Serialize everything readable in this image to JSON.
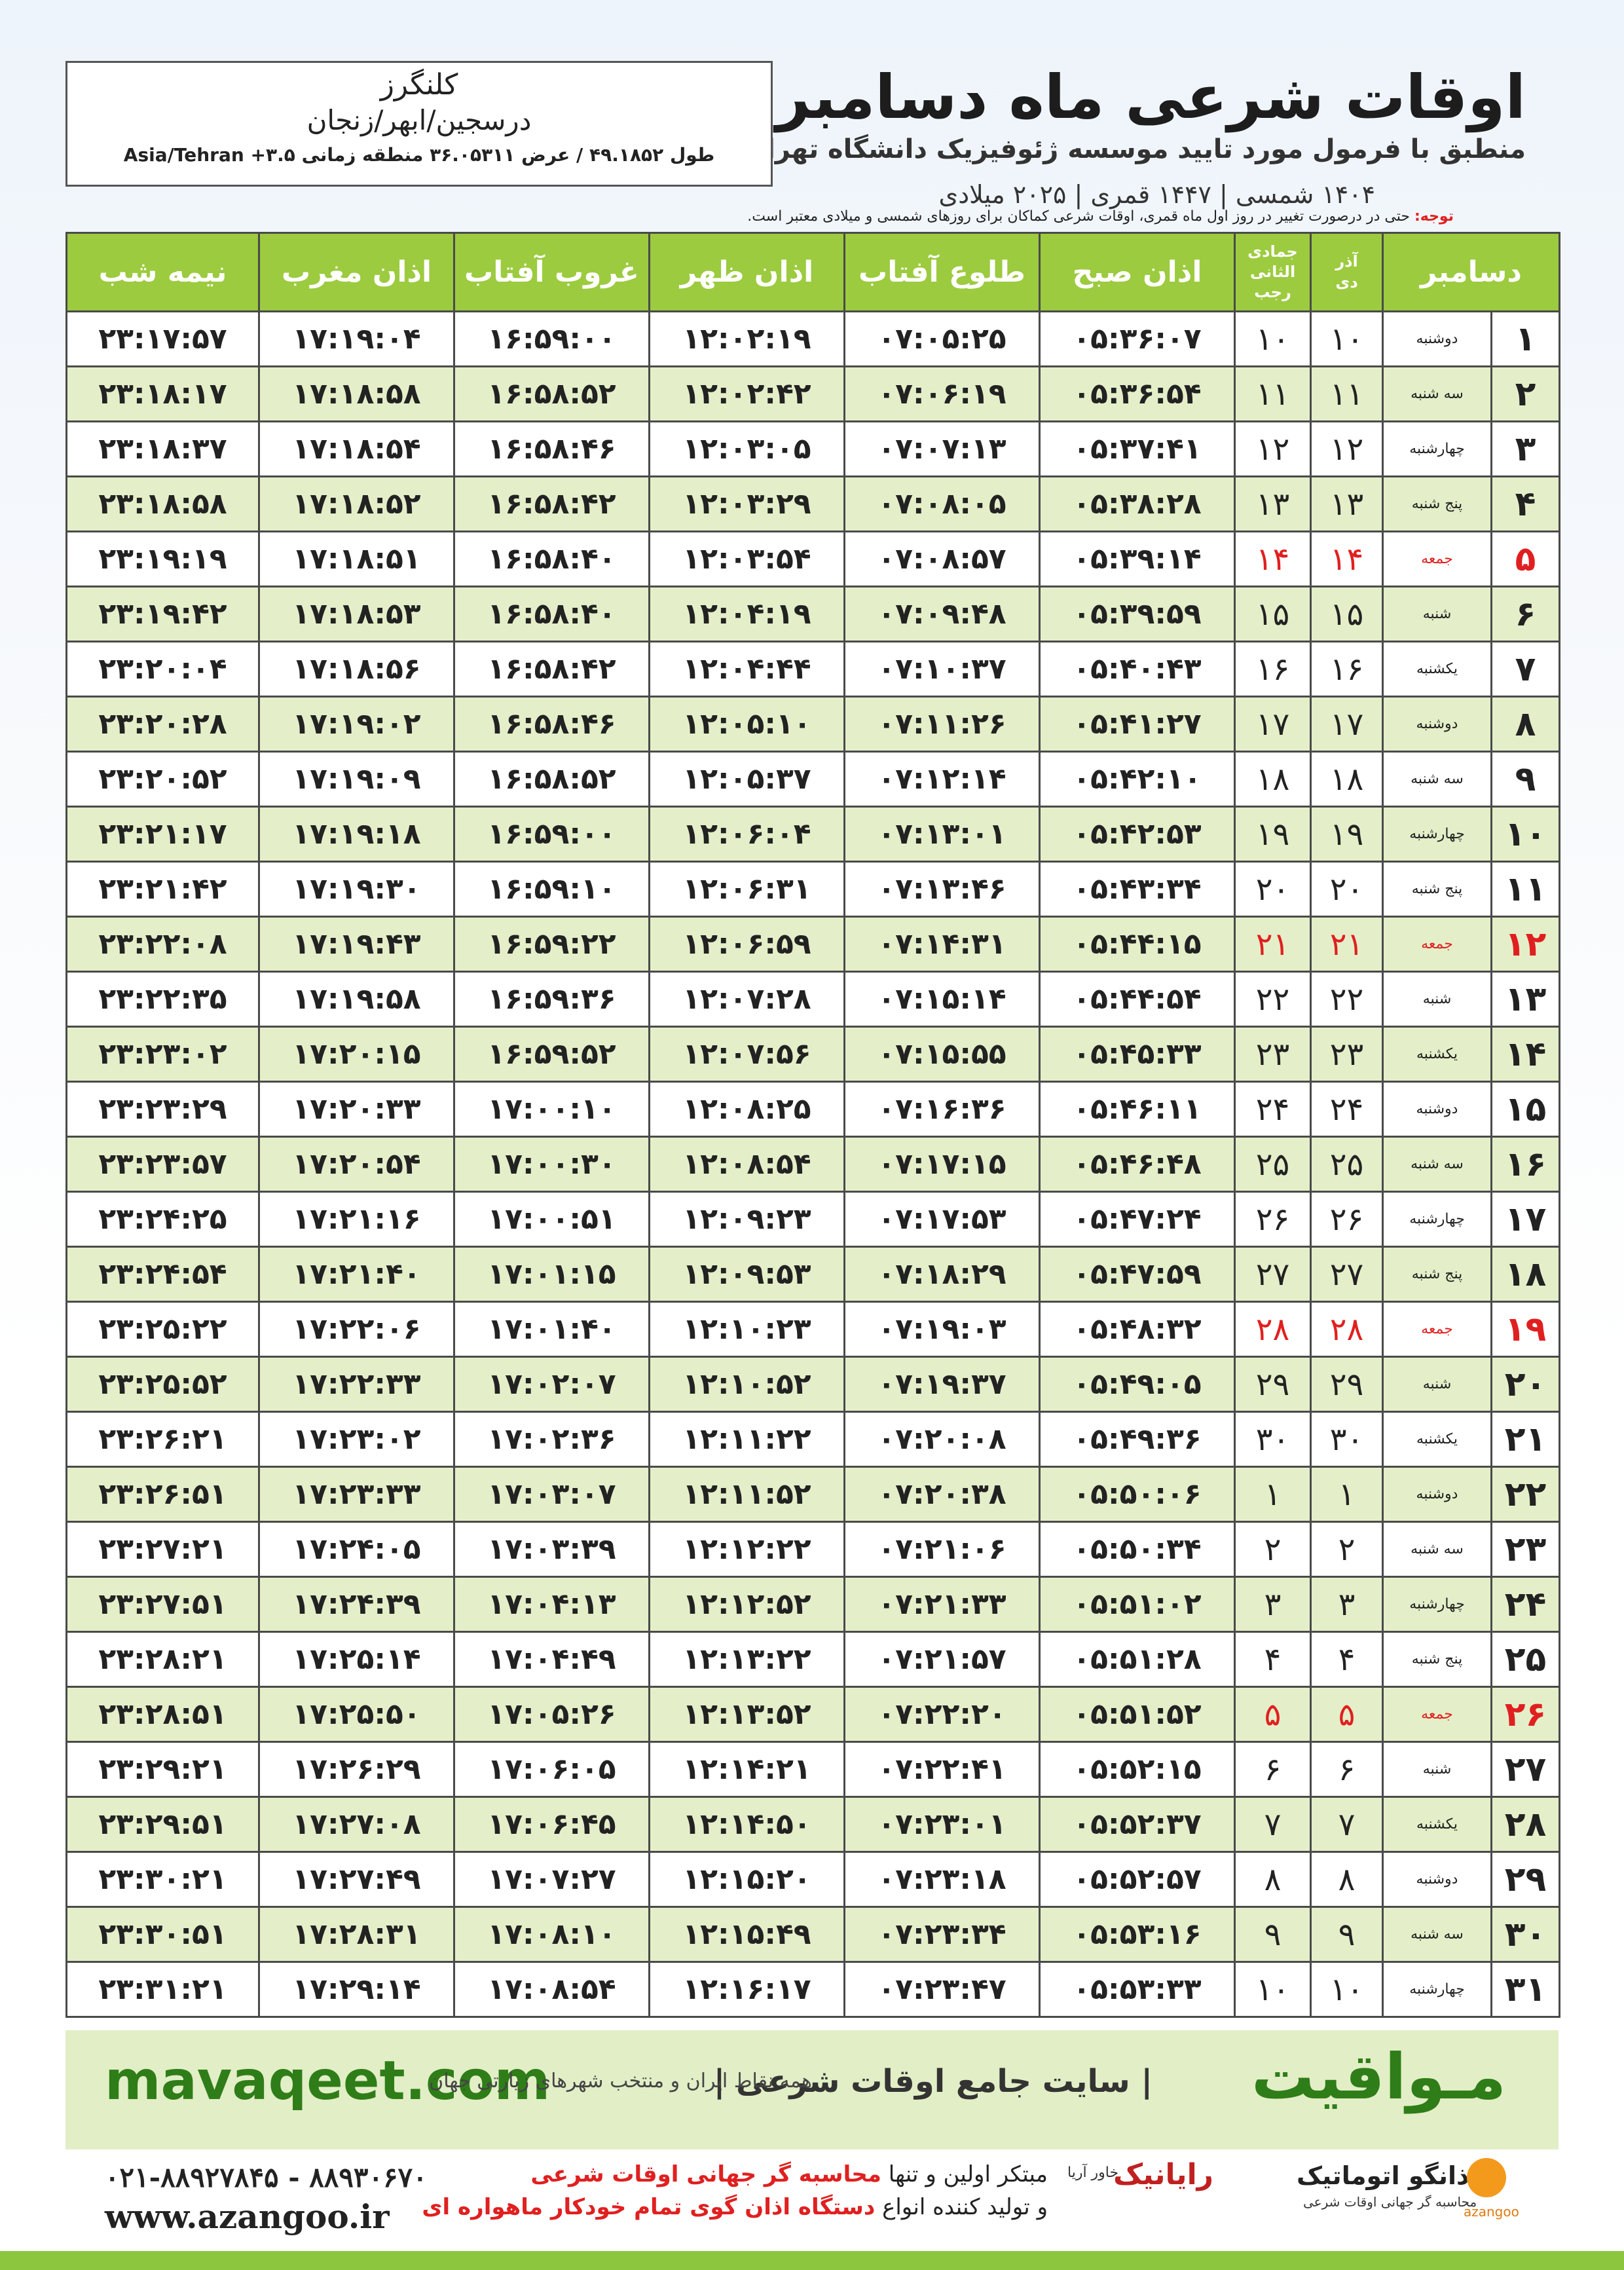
{
  "header": {
    "title": "اوقات شرعی ماه دسامبر",
    "subtitle": "منطبق با فرمول مورد تایید موسسه ژئوفیزیک دانشگاه تهران",
    "years": "۱۴۰۴ شمسی | ۱۴۴۷ قمری | ۲۰۲۵ میلادی"
  },
  "location": {
    "name": "کلنگرز",
    "region": "درسجین/ابهر/زنجان",
    "coords": "طول ۴۹.۱۸۵۲ / عرض ۳۶.۰۵۳۱۱ منطقه زمانی ۳.۵+ Asia/Tehran"
  },
  "note": {
    "label": "توجه:",
    "text": "حتی در درصورت تغییر در روز اول ماه قمری، اوقات شرعی کماکان برای روزهای شمسی و میلادی معتبر است."
  },
  "table": {
    "highlight_color": "#e02020",
    "header": {
      "month": "دسامبر",
      "solar_top": "آذر",
      "solar_bottom": "دی",
      "lunar_top": "جمادی الثانی",
      "lunar_bottom": "رجب",
      "times": [
        "اذان صبح",
        "طلوع آفتاب",
        "اذان ظهر",
        "غروب آفتاب",
        "اذان مغرب",
        "نیمه شب"
      ]
    },
    "rows": [
      {
        "cells": [
          "۱",
          "دوشنبه",
          "۱۰",
          "۱۰",
          "۰۵:۳۶:۰۷",
          "۰۷:۰۵:۲۵",
          "۱۲:۰۲:۱۹",
          "۱۶:۵۹:۰۰",
          "۱۷:۱۹:۰۴",
          "۲۳:۱۷:۵۷"
        ]
      },
      {
        "cells": [
          "۲",
          "سه شنبه",
          "۱۱",
          "۱۱",
          "۰۵:۳۶:۵۴",
          "۰۷:۰۶:۱۹",
          "۱۲:۰۲:۴۲",
          "۱۶:۵۸:۵۲",
          "۱۷:۱۸:۵۸",
          "۲۳:۱۸:۱۷"
        ]
      },
      {
        "cells": [
          "۳",
          "چهارشنبه",
          "۱۲",
          "۱۲",
          "۰۵:۳۷:۴۱",
          "۰۷:۰۷:۱۳",
          "۱۲:۰۳:۰۵",
          "۱۶:۵۸:۴۶",
          "۱۷:۱۸:۵۴",
          "۲۳:۱۸:۳۷"
        ]
      },
      {
        "cells": [
          "۴",
          "پنج شنبه",
          "۱۳",
          "۱۳",
          "۰۵:۳۸:۲۸",
          "۰۷:۰۸:۰۵",
          "۱۲:۰۳:۲۹",
          "۱۶:۵۸:۴۲",
          "۱۷:۱۸:۵۲",
          "۲۳:۱۸:۵۸"
        ]
      },
      {
        "cells": [
          "۵",
          "جمعه",
          "۱۴",
          "۱۴",
          "۰۵:۳۹:۱۴",
          "۰۷:۰۸:۵۷",
          "۱۲:۰۳:۵۴",
          "۱۶:۵۸:۴۰",
          "۱۷:۱۸:۵۱",
          "۲۳:۱۹:۱۹"
        ],
        "highlight": true
      },
      {
        "cells": [
          "۶",
          "شنبه",
          "۱۵",
          "۱۵",
          "۰۵:۳۹:۵۹",
          "۰۷:۰۹:۴۸",
          "۱۲:۰۴:۱۹",
          "۱۶:۵۸:۴۰",
          "۱۷:۱۸:۵۳",
          "۲۳:۱۹:۴۲"
        ]
      },
      {
        "cells": [
          "۷",
          "یکشنبه",
          "۱۶",
          "۱۶",
          "۰۵:۴۰:۴۳",
          "۰۷:۱۰:۳۷",
          "۱۲:۰۴:۴۴",
          "۱۶:۵۸:۴۲",
          "۱۷:۱۸:۵۶",
          "۲۳:۲۰:۰۴"
        ]
      },
      {
        "cells": [
          "۸",
          "دوشنبه",
          "۱۷",
          "۱۷",
          "۰۵:۴۱:۲۷",
          "۰۷:۱۱:۲۶",
          "۱۲:۰۵:۱۰",
          "۱۶:۵۸:۴۶",
          "۱۷:۱۹:۰۲",
          "۲۳:۲۰:۲۸"
        ]
      },
      {
        "cells": [
          "۹",
          "سه شنبه",
          "۱۸",
          "۱۸",
          "۰۵:۴۲:۱۰",
          "۰۷:۱۲:۱۴",
          "۱۲:۰۵:۳۷",
          "۱۶:۵۸:۵۲",
          "۱۷:۱۹:۰۹",
          "۲۳:۲۰:۵۲"
        ]
      },
      {
        "cells": [
          "۱۰",
          "چهارشنبه",
          "۱۹",
          "۱۹",
          "۰۵:۴۲:۵۳",
          "۰۷:۱۳:۰۱",
          "۱۲:۰۶:۰۴",
          "۱۶:۵۹:۰۰",
          "۱۷:۱۹:۱۸",
          "۲۳:۲۱:۱۷"
        ]
      },
      {
        "cells": [
          "۱۱",
          "پنج شنبه",
          "۲۰",
          "۲۰",
          "۰۵:۴۳:۳۴",
          "۰۷:۱۳:۴۶",
          "۱۲:۰۶:۳۱",
          "۱۶:۵۹:۱۰",
          "۱۷:۱۹:۳۰",
          "۲۳:۲۱:۴۲"
        ]
      },
      {
        "cells": [
          "۱۲",
          "جمعه",
          "۲۱",
          "۲۱",
          "۰۵:۴۴:۱۵",
          "۰۷:۱۴:۳۱",
          "۱۲:۰۶:۵۹",
          "۱۶:۵۹:۲۲",
          "۱۷:۱۹:۴۳",
          "۲۳:۲۲:۰۸"
        ],
        "highlight": true
      },
      {
        "cells": [
          "۱۳",
          "شنبه",
          "۲۲",
          "۲۲",
          "۰۵:۴۴:۵۴",
          "۰۷:۱۵:۱۴",
          "۱۲:۰۷:۲۸",
          "۱۶:۵۹:۳۶",
          "۱۷:۱۹:۵۸",
          "۲۳:۲۲:۳۵"
        ]
      },
      {
        "cells": [
          "۱۴",
          "یکشنبه",
          "۲۳",
          "۲۳",
          "۰۵:۴۵:۳۳",
          "۰۷:۱۵:۵۵",
          "۱۲:۰۷:۵۶",
          "۱۶:۵۹:۵۲",
          "۱۷:۲۰:۱۵",
          "۲۳:۲۳:۰۲"
        ]
      },
      {
        "cells": [
          "۱۵",
          "دوشنبه",
          "۲۴",
          "۲۴",
          "۰۵:۴۶:۱۱",
          "۰۷:۱۶:۳۶",
          "۱۲:۰۸:۲۵",
          "۱۷:۰۰:۱۰",
          "۱۷:۲۰:۳۳",
          "۲۳:۲۳:۲۹"
        ]
      },
      {
        "cells": [
          "۱۶",
          "سه شنبه",
          "۲۵",
          "۲۵",
          "۰۵:۴۶:۴۸",
          "۰۷:۱۷:۱۵",
          "۱۲:۰۸:۵۴",
          "۱۷:۰۰:۳۰",
          "۱۷:۲۰:۵۴",
          "۲۳:۲۳:۵۷"
        ]
      },
      {
        "cells": [
          "۱۷",
          "چهارشنبه",
          "۲۶",
          "۲۶",
          "۰۵:۴۷:۲۴",
          "۰۷:۱۷:۵۳",
          "۱۲:۰۹:۲۳",
          "۱۷:۰۰:۵۱",
          "۱۷:۲۱:۱۶",
          "۲۳:۲۴:۲۵"
        ]
      },
      {
        "cells": [
          "۱۸",
          "پنج شنبه",
          "۲۷",
          "۲۷",
          "۰۵:۴۷:۵۹",
          "۰۷:۱۸:۲۹",
          "۱۲:۰۹:۵۳",
          "۱۷:۰۱:۱۵",
          "۱۷:۲۱:۴۰",
          "۲۳:۲۴:۵۴"
        ]
      },
      {
        "cells": [
          "۱۹",
          "جمعه",
          "۲۸",
          "۲۸",
          "۰۵:۴۸:۳۲",
          "۰۷:۱۹:۰۳",
          "۱۲:۱۰:۲۳",
          "۱۷:۰۱:۴۰",
          "۱۷:۲۲:۰۶",
          "۲۳:۲۵:۲۲"
        ],
        "highlight": true
      },
      {
        "cells": [
          "۲۰",
          "شنبه",
          "۲۹",
          "۲۹",
          "۰۵:۴۹:۰۵",
          "۰۷:۱۹:۳۷",
          "۱۲:۱۰:۵۲",
          "۱۷:۰۲:۰۷",
          "۱۷:۲۲:۳۳",
          "۲۳:۲۵:۵۲"
        ]
      },
      {
        "cells": [
          "۲۱",
          "یکشنبه",
          "۳۰",
          "۳۰",
          "۰۵:۴۹:۳۶",
          "۰۷:۲۰:۰۸",
          "۱۲:۱۱:۲۲",
          "۱۷:۰۲:۳۶",
          "۱۷:۲۳:۰۲",
          "۲۳:۲۶:۲۱"
        ]
      },
      {
        "cells": [
          "۲۲",
          "دوشنبه",
          "۱",
          "۱",
          "۰۵:۵۰:۰۶",
          "۰۷:۲۰:۳۸",
          "۱۲:۱۱:۵۲",
          "۱۷:۰۳:۰۷",
          "۱۷:۲۳:۳۳",
          "۲۳:۲۶:۵۱"
        ]
      },
      {
        "cells": [
          "۲۳",
          "سه شنبه",
          "۲",
          "۲",
          "۰۵:۵۰:۳۴",
          "۰۷:۲۱:۰۶",
          "۱۲:۱۲:۲۲",
          "۱۷:۰۳:۳۹",
          "۱۷:۲۴:۰۵",
          "۲۳:۲۷:۲۱"
        ]
      },
      {
        "cells": [
          "۲۴",
          "چهارشنبه",
          "۳",
          "۳",
          "۰۵:۵۱:۰۲",
          "۰۷:۲۱:۳۳",
          "۱۲:۱۲:۵۲",
          "۱۷:۰۴:۱۳",
          "۱۷:۲۴:۳۹",
          "۲۳:۲۷:۵۱"
        ]
      },
      {
        "cells": [
          "۲۵",
          "پنج شنبه",
          "۴",
          "۴",
          "۰۵:۵۱:۲۸",
          "۰۷:۲۱:۵۷",
          "۱۲:۱۳:۲۲",
          "۱۷:۰۴:۴۹",
          "۱۷:۲۵:۱۴",
          "۲۳:۲۸:۲۱"
        ]
      },
      {
        "cells": [
          "۲۶",
          "جمعه",
          "۵",
          "۵",
          "۰۵:۵۱:۵۲",
          "۰۷:۲۲:۲۰",
          "۱۲:۱۳:۵۲",
          "۱۷:۰۵:۲۶",
          "۱۷:۲۵:۵۰",
          "۲۳:۲۸:۵۱"
        ],
        "highlight": true
      },
      {
        "cells": [
          "۲۷",
          "شنبه",
          "۶",
          "۶",
          "۰۵:۵۲:۱۵",
          "۰۷:۲۲:۴۱",
          "۱۲:۱۴:۲۱",
          "۱۷:۰۶:۰۵",
          "۱۷:۲۶:۲۹",
          "۲۳:۲۹:۲۱"
        ]
      },
      {
        "cells": [
          "۲۸",
          "یکشنبه",
          "۷",
          "۷",
          "۰۵:۵۲:۳۷",
          "۰۷:۲۳:۰۱",
          "۱۲:۱۴:۵۰",
          "۱۷:۰۶:۴۵",
          "۱۷:۲۷:۰۸",
          "۲۳:۲۹:۵۱"
        ]
      },
      {
        "cells": [
          "۲۹",
          "دوشنبه",
          "۸",
          "۸",
          "۰۵:۵۲:۵۷",
          "۰۷:۲۳:۱۸",
          "۱۲:۱۵:۲۰",
          "۱۷:۰۷:۲۷",
          "۱۷:۲۷:۴۹",
          "۲۳:۳۰:۲۱"
        ]
      },
      {
        "cells": [
          "۳۰",
          "سه شنبه",
          "۹",
          "۹",
          "۰۵:۵۳:۱۶",
          "۰۷:۲۳:۳۴",
          "۱۲:۱۵:۴۹",
          "۱۷:۰۸:۱۰",
          "۱۷:۲۸:۳۱",
          "۲۳:۳۰:۵۱"
        ]
      },
      {
        "cells": [
          "۳۱",
          "چهارشنبه",
          "۱۰",
          "۱۰",
          "۰۵:۵۳:۳۳",
          "۰۷:۲۳:۴۷",
          "۱۲:۱۶:۱۷",
          "۱۷:۰۸:۵۴",
          "۱۷:۲۹:۱۴",
          "۲۳:۳۱:۲۱"
        ]
      }
    ]
  },
  "footer": {
    "site": "mavaqeet.com",
    "brand": "مـواقیت",
    "slogan": "| سایت جامع اوقات شرعی |",
    "slogan2": "همه نقاط ایران و منتخب شهرهای زیارتی جهان",
    "phones": "۰۲۱-۸۸۹۲۷۸۴۵ - ۸۸۹۳۰۶۷۰",
    "web": "www.azangoo.ir",
    "line1_a": "مبتکر اولین و تنها",
    "line1_b": "محاسبه گر جهانی اوقات شرعی",
    "line2_a": "و تولید کننده انواع",
    "line2_b": "دستگاه اذان گوی تمام خودکار ماهواره ای",
    "logo1": "رایانیک",
    "logo1_sub": "خاور آریا",
    "logo2": "اذانگو اتوماتیک",
    "logo2_sub": "محاسبه گر جهانی اوقات شرعی",
    "logo3": "azangoo"
  }
}
